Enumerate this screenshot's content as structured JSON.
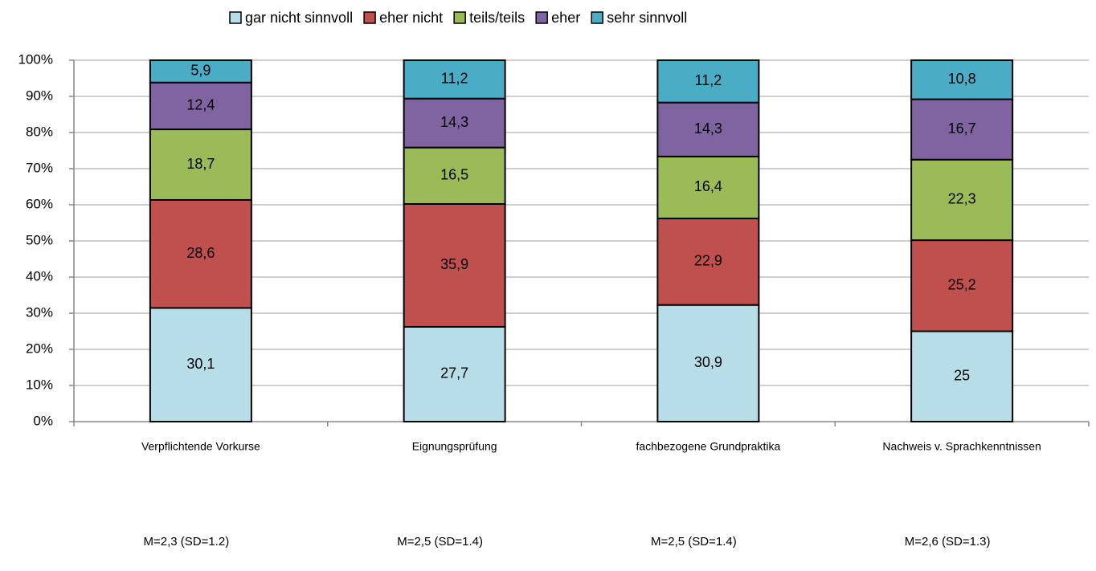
{
  "chart_data": {
    "type": "bar",
    "stack": "percent",
    "categories": [
      "Verpflichtende Vorkurse",
      "Eignungsprüfung",
      "fachbezogene Grundpraktika",
      "Nachweis v. Sprachkenntnissen"
    ],
    "annotations": [
      "M=2,3 (SD=1.2)",
      "M=2,5 (SD=1.4)",
      "M=2,5 (SD=1.4)",
      "M=2,6 (SD=1.3)"
    ],
    "series": [
      {
        "name": "gar nicht sinnvoll",
        "color": "#b7dde8",
        "values": [
          30.1,
          27.7,
          30.9,
          25
        ],
        "value_labels": [
          "30,1",
          "27,7",
          "30,9",
          "25"
        ]
      },
      {
        "name": "eher nicht",
        "color": "#c0504d",
        "values": [
          28.6,
          35.9,
          22.9,
          25.2
        ],
        "value_labels": [
          "28,6",
          "35,9",
          "22,9",
          "25,2"
        ]
      },
      {
        "name": "teils/teils",
        "color": "#9bbb59",
        "values": [
          18.7,
          16.5,
          16.4,
          22.3
        ],
        "value_labels": [
          "18,7",
          "16,5",
          "16,4",
          "22,3"
        ]
      },
      {
        "name": "eher",
        "color": "#8064a2",
        "values": [
          12.4,
          14.3,
          14.3,
          16.7
        ],
        "value_labels": [
          "12,4",
          "14,3",
          "14,3",
          "16,7"
        ]
      },
      {
        "name": "sehr sinnvoll",
        "color": "#4bacc6",
        "values": [
          5.9,
          11.2,
          11.2,
          10.8
        ],
        "value_labels": [
          "5,9",
          "11,2",
          "11,2",
          "10,8"
        ]
      }
    ],
    "ylim": [
      0,
      100
    ],
    "yticks": [
      {
        "value": 0,
        "label": "0%"
      },
      {
        "value": 10,
        "label": "10%"
      },
      {
        "value": 20,
        "label": "20%"
      },
      {
        "value": 30,
        "label": "30%"
      },
      {
        "value": 40,
        "label": "40%"
      },
      {
        "value": 50,
        "label": "50%"
      },
      {
        "value": 60,
        "label": "60%"
      },
      {
        "value": 70,
        "label": "70%"
      },
      {
        "value": 80,
        "label": "80%"
      },
      {
        "value": 90,
        "label": "90%"
      },
      {
        "value": 100,
        "label": "100%"
      }
    ],
    "grid": true,
    "legend": "top"
  }
}
